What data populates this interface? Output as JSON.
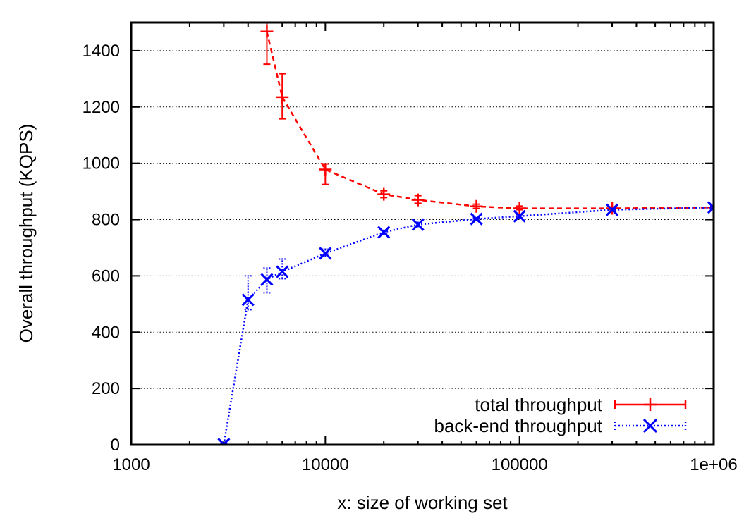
{
  "chart_data": {
    "type": "line",
    "xlabel": "x: size of working set",
    "ylabel": "Overall throughput (KQPS)",
    "xscale": "log",
    "xlim": [
      1000,
      1000000
    ],
    "ylim": [
      0,
      1500
    ],
    "x_ticks": [
      1000,
      10000,
      100000,
      1000000
    ],
    "x_tick_labels": [
      "1000",
      "10000",
      "100000",
      "1e+06"
    ],
    "y_ticks": [
      0,
      200,
      400,
      600,
      800,
      1000,
      1200,
      1400
    ],
    "y_tick_labels": [
      "0",
      "200",
      "400",
      "600",
      "800",
      "1000",
      "1200",
      "1400"
    ],
    "grid": "horizontal dotted",
    "legend_position": "bottom-right",
    "series": [
      {
        "name": "total throughput",
        "color": "#ff0000",
        "line_style": "dashed",
        "marker": "plus",
        "points": [
          {
            "x": 5000,
            "y": 1468,
            "err_low": 1352,
            "err_high": 1500
          },
          {
            "x": 6000,
            "y": 1235,
            "err_low": 1158,
            "err_high": 1318
          },
          {
            "x": 10000,
            "y": 978,
            "err_low": 925,
            "err_high": 998
          },
          {
            "x": 20000,
            "y": 890,
            "err_low": 878,
            "err_high": 902
          },
          {
            "x": 30000,
            "y": 870,
            "err_low": 858,
            "err_high": 885
          },
          {
            "x": 60000,
            "y": 847,
            "err_low": 840,
            "err_high": 855
          },
          {
            "x": 100000,
            "y": 840,
            "err_low": 835,
            "err_high": 848
          },
          {
            "x": 300000,
            "y": 840,
            "err_low": 836,
            "err_high": 845
          },
          {
            "x": 1000000,
            "y": 843,
            "err_low": 840,
            "err_high": 847
          }
        ]
      },
      {
        "name": "back-end throughput",
        "color": "#0000ff",
        "line_style": "dotted",
        "marker": "x",
        "points": [
          {
            "x": 3000,
            "y": 2,
            "err_low": 0,
            "err_high": 4
          },
          {
            "x": 4000,
            "y": 515,
            "err_low": 480,
            "err_high": 600
          },
          {
            "x": 5000,
            "y": 587,
            "err_low": 540,
            "err_high": 628
          },
          {
            "x": 6000,
            "y": 615,
            "err_low": 590,
            "err_high": 660
          },
          {
            "x": 10000,
            "y": 680,
            "err_low": 670,
            "err_high": 695
          },
          {
            "x": 20000,
            "y": 755,
            "err_low": 748,
            "err_high": 762
          },
          {
            "x": 30000,
            "y": 782,
            "err_low": 775,
            "err_high": 790
          },
          {
            "x": 60000,
            "y": 802,
            "err_low": 798,
            "err_high": 806
          },
          {
            "x": 100000,
            "y": 812,
            "err_low": 806,
            "err_high": 818
          },
          {
            "x": 300000,
            "y": 835,
            "err_low": 830,
            "err_high": 840
          },
          {
            "x": 1000000,
            "y": 843,
            "err_low": 840,
            "err_high": 846
          }
        ]
      }
    ]
  }
}
